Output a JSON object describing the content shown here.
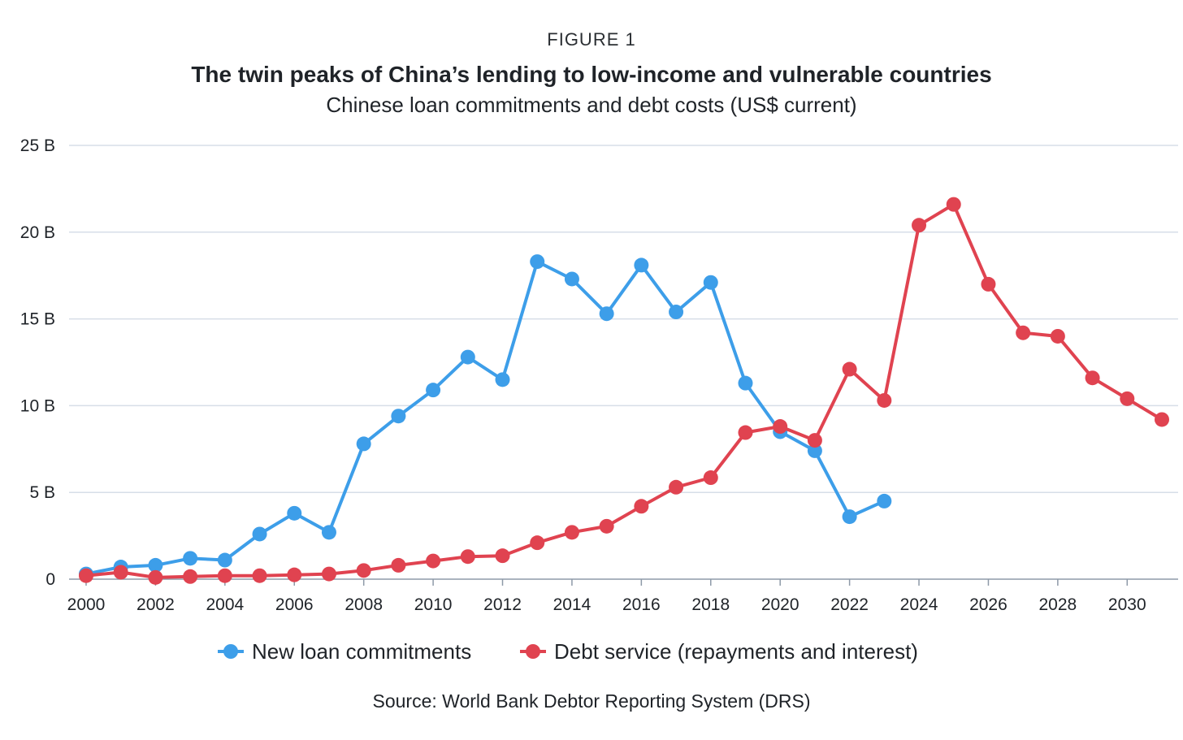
{
  "figure": {
    "label": "FIGURE 1",
    "source": "Source: World Bank Debtor Reporting System (DRS)"
  },
  "chart_data": {
    "type": "line",
    "title": "The twin peaks of China’s lending to low-income and vulnerable countries",
    "subtitle": "Chinese loan commitments and debt costs (US$ current)",
    "xlabel": "",
    "ylabel": "",
    "xlim": [
      2000,
      2031
    ],
    "ylim": [
      0,
      25
    ],
    "grid": true,
    "legend_position": "bottom",
    "x_ticks": [
      2000,
      2002,
      2004,
      2006,
      2008,
      2010,
      2012,
      2014,
      2016,
      2018,
      2020,
      2022,
      2024,
      2026,
      2028,
      2030
    ],
    "x_tick_labels": [
      "2000",
      "2002",
      "2004",
      "2006",
      "2008",
      "2010",
      "2012",
      "2014",
      "2016",
      "2018",
      "2020",
      "2022",
      "2024",
      "2026",
      "2028",
      "2030"
    ],
    "y_ticks": [
      0,
      5,
      10,
      15,
      20,
      25
    ],
    "y_tick_labels": [
      "0",
      "5 B",
      "10 B",
      "15 B",
      "20 B",
      "25 B"
    ],
    "series": [
      {
        "name": "New loan commitments",
        "color": "#3d9ee9",
        "x": [
          2000,
          2001,
          2002,
          2003,
          2004,
          2005,
          2006,
          2007,
          2008,
          2009,
          2010,
          2011,
          2012,
          2013,
          2014,
          2015,
          2016,
          2017,
          2018,
          2019,
          2020,
          2021,
          2022,
          2023
        ],
        "y": [
          0.3,
          0.7,
          0.8,
          1.2,
          1.1,
          2.6,
          3.8,
          2.7,
          7.8,
          9.4,
          10.9,
          12.8,
          11.5,
          18.3,
          17.3,
          15.3,
          18.1,
          15.4,
          17.1,
          11.3,
          8.5,
          7.4,
          3.6,
          4.5
        ]
      },
      {
        "name": "Debt service (repayments and interest)",
        "color": "#e04350",
        "x": [
          2000,
          2001,
          2002,
          2003,
          2004,
          2005,
          2006,
          2007,
          2008,
          2009,
          2010,
          2011,
          2012,
          2013,
          2014,
          2015,
          2016,
          2017,
          2018,
          2019,
          2020,
          2021,
          2022,
          2023,
          2024,
          2025,
          2026,
          2027,
          2028,
          2029,
          2030,
          2031
        ],
        "y": [
          0.2,
          0.4,
          0.1,
          0.15,
          0.2,
          0.2,
          0.25,
          0.3,
          0.5,
          0.8,
          1.05,
          1.3,
          1.35,
          2.1,
          2.7,
          3.05,
          4.2,
          5.3,
          5.85,
          8.45,
          8.8,
          8.0,
          12.1,
          10.3,
          20.4,
          21.6,
          17.0,
          14.2,
          14.0,
          11.6,
          10.4,
          9.2
        ]
      }
    ]
  }
}
